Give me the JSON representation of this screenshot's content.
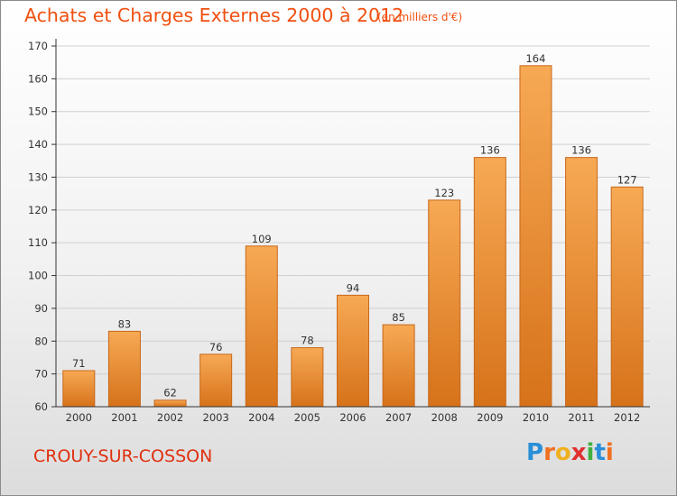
{
  "header": {
    "title": "Achats et Charges Externes 2000 à 2012",
    "unit": "(en milliers d'€)"
  },
  "footer": {
    "commune": "CROUY-SUR-COSSON",
    "logo_letters": [
      {
        "ch": "P",
        "color": "#2a8fd8"
      },
      {
        "ch": "r",
        "color": "#f07020"
      },
      {
        "ch": "o",
        "color": "#f0b020"
      },
      {
        "ch": "x",
        "color": "#e03030"
      },
      {
        "ch": "i",
        "color": "#40b040"
      },
      {
        "ch": "t",
        "color": "#2a8fd8"
      },
      {
        "ch": "i",
        "color": "#f07020"
      }
    ]
  },
  "colors": {
    "bar_light": "#f7a954",
    "bar_dark": "#d6721a",
    "bar_edge": "#c8681a",
    "grid": "#d0d0d0",
    "axis": "#333333",
    "text": "#333333"
  },
  "chart_data": {
    "type": "bar",
    "categories": [
      "2000",
      "2001",
      "2002",
      "2003",
      "2004",
      "2005",
      "2006",
      "2007",
      "2008",
      "2009",
      "2010",
      "2011",
      "2012"
    ],
    "values": [
      71,
      83,
      62,
      76,
      109,
      78,
      94,
      85,
      123,
      136,
      164,
      136,
      127
    ],
    "ylim": [
      60,
      170
    ],
    "yticks": [
      60,
      70,
      80,
      90,
      100,
      110,
      120,
      130,
      140,
      150,
      160,
      170
    ],
    "grid": true
  }
}
